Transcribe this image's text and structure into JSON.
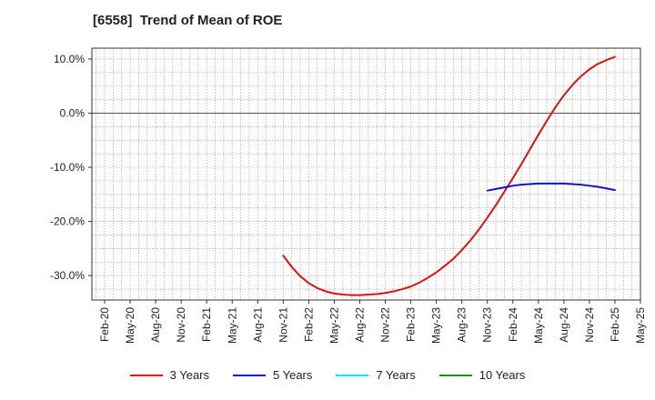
{
  "chart_data": {
    "type": "line",
    "title": "[6558]  Trend of Mean of ROE",
    "xlabel": "",
    "ylabel": "",
    "x_ticks": [
      "Feb-20",
      "May-20",
      "Aug-20",
      "Nov-20",
      "Feb-21",
      "May-21",
      "Aug-21",
      "Nov-21",
      "Feb-22",
      "May-22",
      "Aug-22",
      "Nov-22",
      "Feb-23",
      "May-23",
      "Aug-23",
      "Nov-23",
      "Feb-24",
      "May-24",
      "Aug-24",
      "Nov-24",
      "Feb-25",
      "May-25"
    ],
    "y_ticks": [
      10,
      0,
      -10,
      -20,
      -30
    ],
    "y_tick_labels": [
      "10.0%",
      "0.0%",
      "-10.0%",
      "-20.0%",
      "-30.0%"
    ],
    "ylim": [
      -34.5,
      12
    ],
    "grid": true,
    "legend_position": "bottom",
    "series": [
      {
        "name": "3 Years",
        "color": "#dd1111",
        "points": [
          [
            "Nov-21",
            -26.3
          ],
          [
            "Dec-21",
            -28.4
          ],
          [
            "Jan-22",
            -30.1
          ],
          [
            "Feb-22",
            -31.4
          ],
          [
            "Mar-22",
            -32.3
          ],
          [
            "Apr-22",
            -32.9
          ],
          [
            "May-22",
            -33.3
          ],
          [
            "Jun-22",
            -33.5
          ],
          [
            "Jul-22",
            -33.6
          ],
          [
            "Aug-22",
            -33.6
          ],
          [
            "Sep-22",
            -33.5
          ],
          [
            "Oct-22",
            -33.4
          ],
          [
            "Nov-22",
            -33.2
          ],
          [
            "Dec-22",
            -32.9
          ],
          [
            "Jan-23",
            -32.5
          ],
          [
            "Feb-23",
            -32.0
          ],
          [
            "Mar-23",
            -31.3
          ],
          [
            "Apr-23",
            -30.4
          ],
          [
            "May-23",
            -29.4
          ],
          [
            "Jun-23",
            -28.2
          ],
          [
            "Jul-23",
            -26.9
          ],
          [
            "Aug-23",
            -25.3
          ],
          [
            "Sep-23",
            -23.5
          ],
          [
            "Oct-23",
            -21.5
          ],
          [
            "Nov-23",
            -19.3
          ],
          [
            "Dec-23",
            -17.0
          ],
          [
            "Jan-24",
            -14.5
          ],
          [
            "Feb-24",
            -12.0
          ],
          [
            "Mar-24",
            -9.4
          ],
          [
            "Apr-24",
            -6.7
          ],
          [
            "May-24",
            -4.0
          ],
          [
            "Jun-24",
            -1.4
          ],
          [
            "Jul-24",
            1.1
          ],
          [
            "Aug-24",
            3.3
          ],
          [
            "Sep-24",
            5.2
          ],
          [
            "Oct-24",
            6.8
          ],
          [
            "Nov-24",
            8.1
          ],
          [
            "Dec-24",
            9.1
          ],
          [
            "Jan-25",
            9.8
          ],
          [
            "Feb-25",
            10.4
          ]
        ]
      },
      {
        "name": "5 Years",
        "color": "#1111cc",
        "points": [
          [
            "Nov-23",
            -14.3
          ],
          [
            "Dec-23",
            -14.0
          ],
          [
            "Jan-24",
            -13.7
          ],
          [
            "Feb-24",
            -13.4
          ],
          [
            "Mar-24",
            -13.2
          ],
          [
            "Apr-24",
            -13.1
          ],
          [
            "May-24",
            -13.0
          ],
          [
            "Jun-24",
            -13.0
          ],
          [
            "Jul-24",
            -13.0
          ],
          [
            "Aug-24",
            -13.0
          ],
          [
            "Sep-24",
            -13.1
          ],
          [
            "Oct-24",
            -13.2
          ],
          [
            "Nov-24",
            -13.4
          ],
          [
            "Dec-24",
            -13.6
          ],
          [
            "Jan-25",
            -13.9
          ],
          [
            "Feb-25",
            -14.2
          ]
        ]
      },
      {
        "name": "7 Years",
        "color": "#00e5ee",
        "points": []
      },
      {
        "name": "10 Years",
        "color": "#228b22",
        "points": []
      }
    ]
  }
}
